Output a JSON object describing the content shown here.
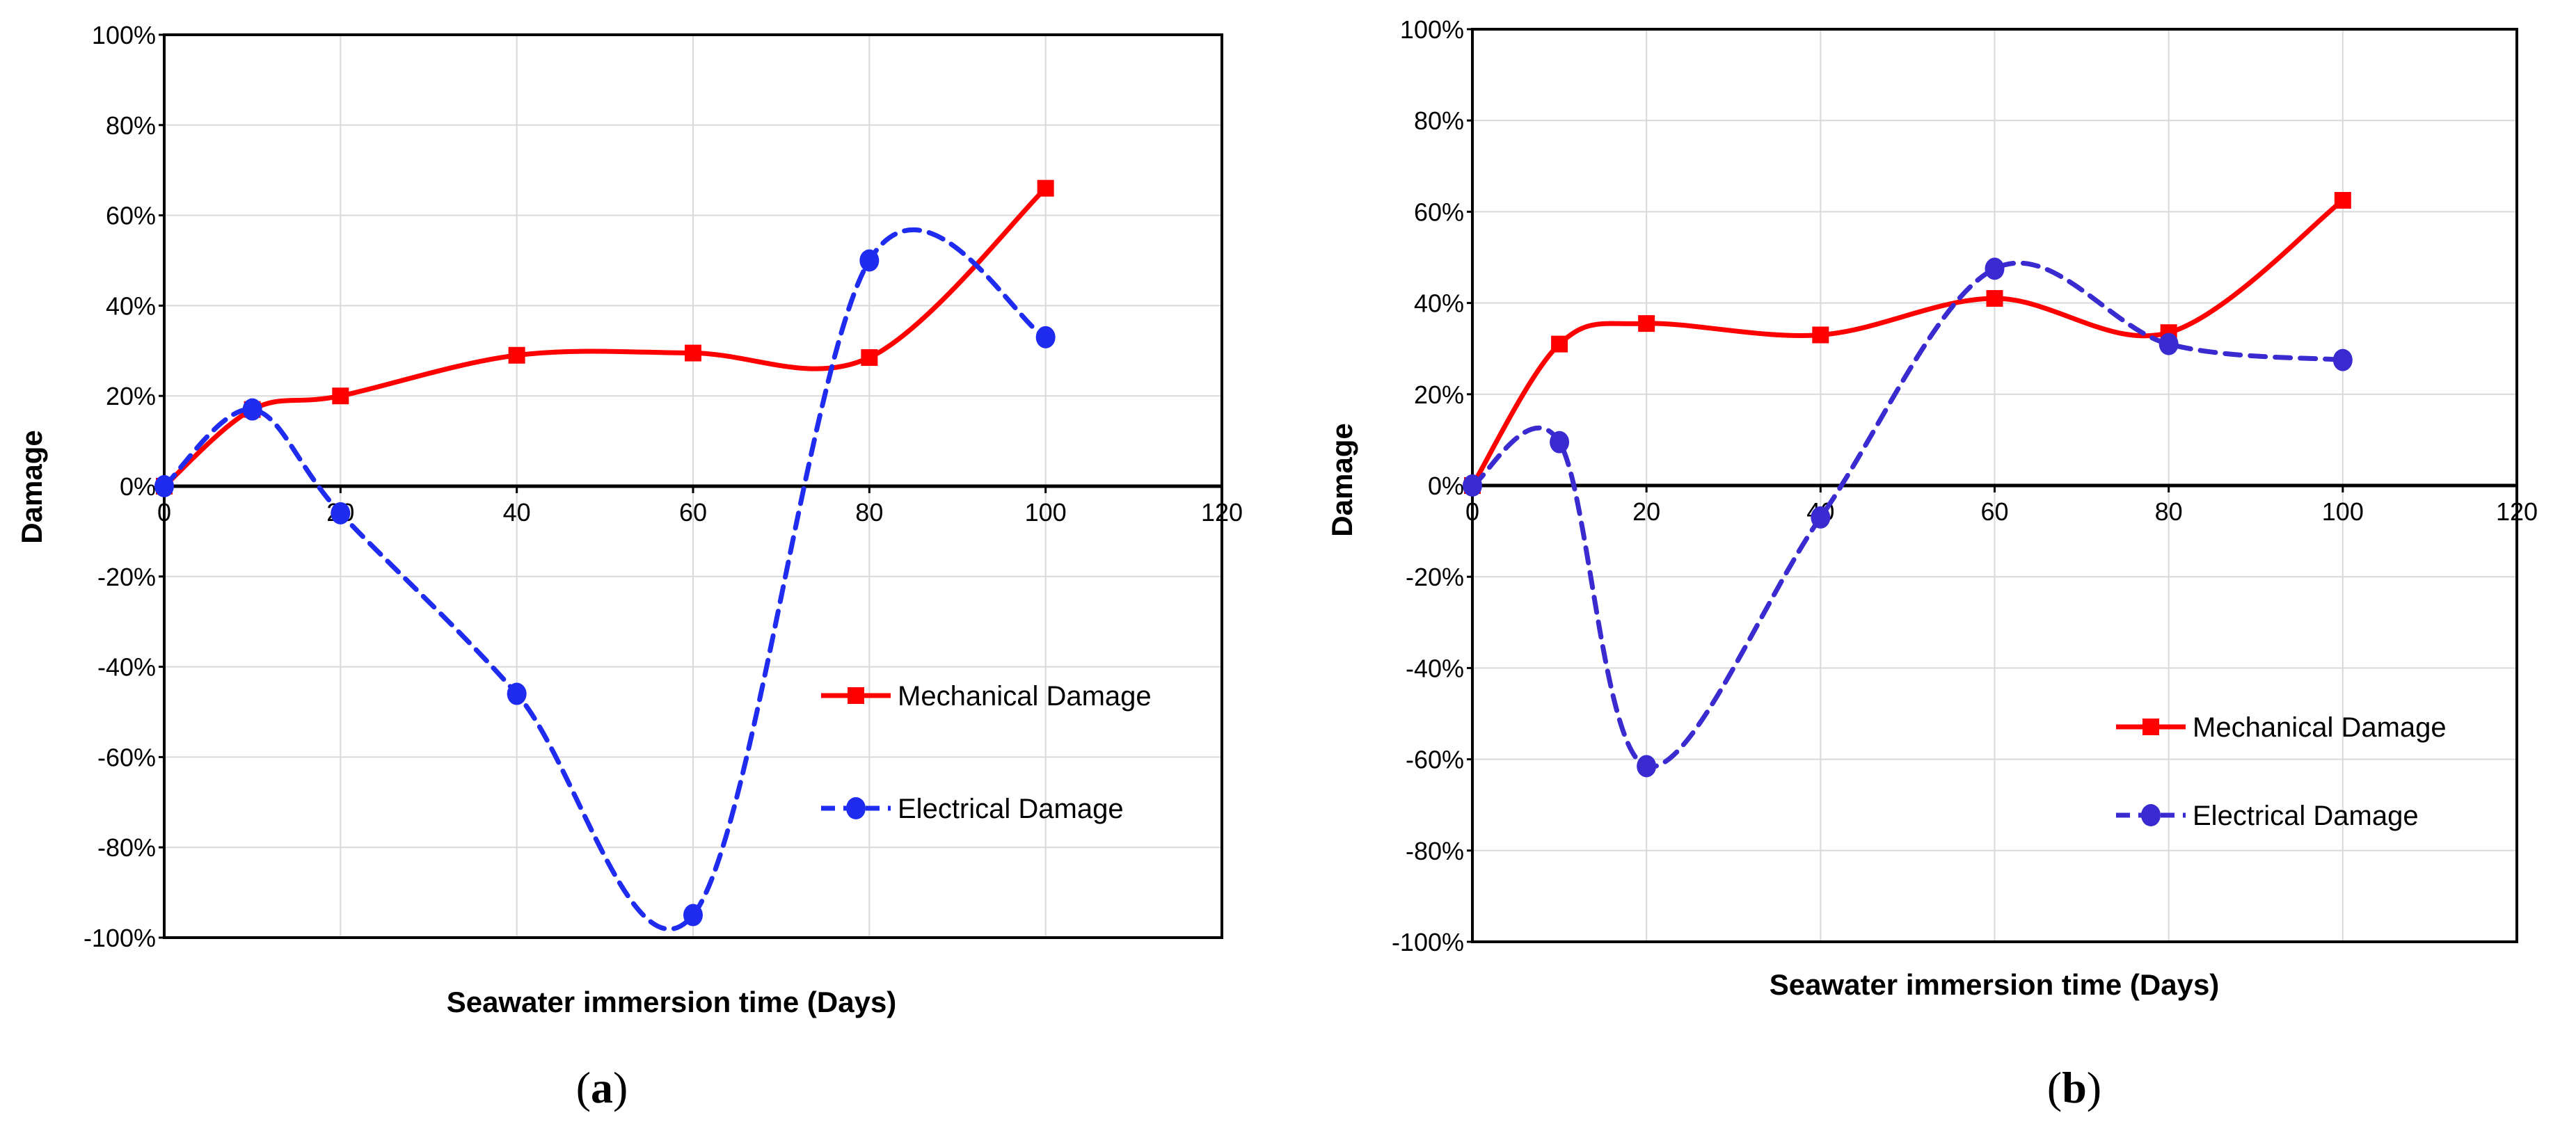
{
  "chart_data": [
    {
      "panel": "a",
      "panel_label": "a",
      "type": "line",
      "title": "",
      "xlabel": "Seawater immersion time (Days)",
      "ylabel": "Damage",
      "xlim": [
        0,
        120
      ],
      "ylim": [
        -100,
        100
      ],
      "x_ticks": [
        0,
        20,
        40,
        60,
        80,
        100,
        120
      ],
      "y_ticks": [
        100,
        80,
        60,
        40,
        20,
        0,
        -20,
        -40,
        -60,
        -80,
        -100
      ],
      "grid": true,
      "legend_position": "lower-right",
      "series": [
        {
          "name": "Mechanical Damage",
          "color": "#ff0000",
          "marker": "square",
          "line_style": "solid",
          "x": [
            0,
            10,
            20,
            40,
            60,
            80,
            100
          ],
          "values": [
            0,
            17,
            20,
            29,
            29.5,
            28.5,
            66
          ]
        },
        {
          "name": "Electrical Damage",
          "color": "#1f2cf0",
          "marker": "circle",
          "line_style": "dashed",
          "x": [
            0,
            10,
            20,
            40,
            60,
            80,
            100
          ],
          "values": [
            0,
            17,
            -6,
            -46,
            -95,
            50,
            33
          ]
        }
      ]
    },
    {
      "panel": "b",
      "panel_label": "b",
      "type": "line",
      "title": "",
      "xlabel": "Seawater immersion time (Days)",
      "ylabel": "Damage",
      "xlim": [
        0,
        120
      ],
      "ylim": [
        -100,
        100
      ],
      "x_ticks": [
        0,
        20,
        40,
        60,
        80,
        100,
        120
      ],
      "y_ticks": [
        100,
        80,
        60,
        40,
        20,
        0,
        -20,
        -40,
        -60,
        -80,
        -100
      ],
      "grid": true,
      "legend_position": "lower-right",
      "series": [
        {
          "name": "Mechanical Damage",
          "color": "#ff0000",
          "marker": "square",
          "line_style": "solid",
          "x": [
            0,
            10,
            20,
            40,
            60,
            80,
            100
          ],
          "values": [
            0,
            31,
            35.5,
            33,
            41,
            33.5,
            62.5
          ]
        },
        {
          "name": "Electrical Damage",
          "color": "#3a2bd0",
          "marker": "circle",
          "line_style": "dashed",
          "x": [
            0,
            10,
            20,
            40,
            60,
            80,
            100
          ],
          "values": [
            0,
            9.5,
            -61.5,
            -7,
            47.5,
            31,
            27.5
          ]
        }
      ]
    }
  ]
}
